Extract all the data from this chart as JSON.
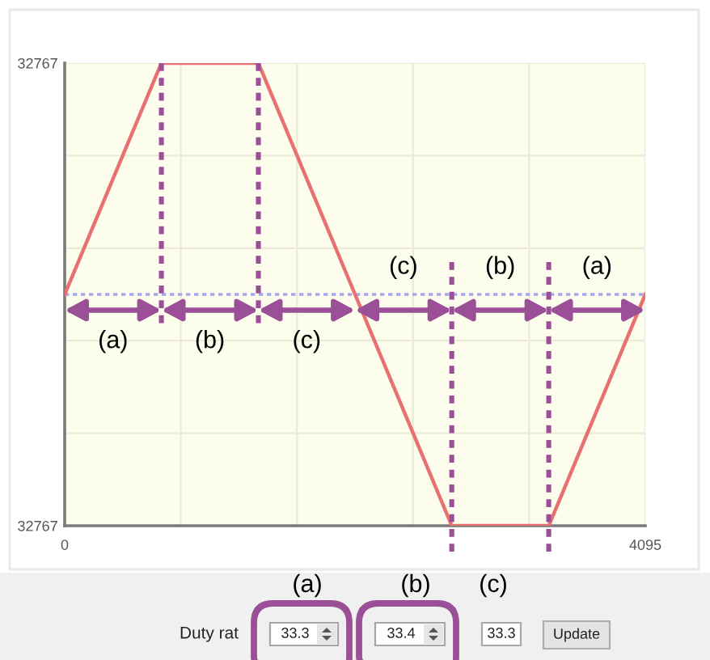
{
  "chart_data": {
    "type": "line",
    "x": [
      0,
      682,
      1366,
      2048,
      2730,
      3414,
      4095
    ],
    "series": [
      {
        "color": "#e8706e",
        "values": [
          0,
          32767,
          32767,
          0,
          -32767,
          -32767,
          0
        ]
      }
    ],
    "line_style": "solid",
    "xlim": [
      0,
      4095
    ],
    "xticks": [
      0,
      {
        "value": 819,
        "label": null
      },
      {
        "value": 1638,
        "label": null
      },
      {
        "value": 2457,
        "label": null
      },
      {
        "value": 3276,
        "label": null
      },
      4095
    ],
    "ylim": [
      -32767,
      32767
    ],
    "yticks": [
      {
        "value": -32767,
        "label": "32767"
      },
      {
        "value": -19660,
        "label": null
      },
      {
        "value": -6553,
        "label": null
      },
      {
        "value": 6553,
        "label": null
      },
      {
        "value": 19660,
        "label": null
      },
      32767
    ],
    "grid": true,
    "ref_lines": [
      {
        "axis": "y",
        "value": 0,
        "color": "#a6a6e8",
        "line_style": "dotted"
      },
      {
        "axis": "x",
        "value": 682,
        "color": "#9b4f96",
        "line_style": "dotted"
      },
      {
        "axis": "x",
        "value": 1366,
        "color": "#9b4f96",
        "line_style": "dotted"
      },
      {
        "axis": "x",
        "value": 2730,
        "color": "#9b4f96",
        "line_style": "dotted"
      },
      {
        "axis": "x",
        "value": 3414,
        "color": "#9b4f96",
        "line_style": "dotted"
      }
    ],
    "annotations": [
      "(a)",
      "(b)",
      "(c)",
      "(c)",
      "(b)",
      "(a)",
      "(a)",
      "(b)",
      "(c)",
      "Duty rat",
      "33.3",
      "33.4",
      "33.3",
      "Update"
    ]
  }
}
